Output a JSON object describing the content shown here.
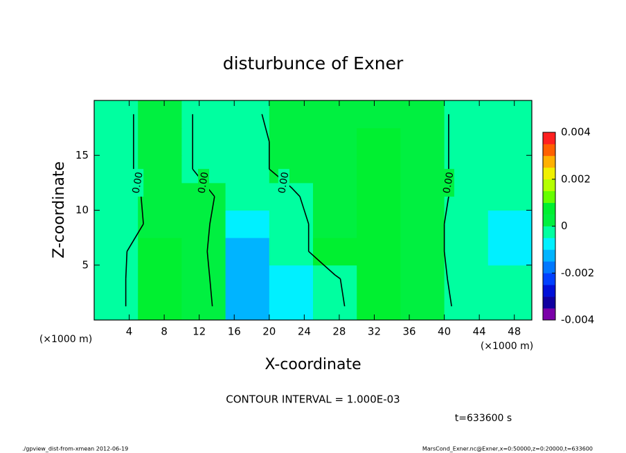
{
  "chart_data": {
    "type": "contour",
    "title": "disturbunce of Exner",
    "xlabel": "X-coordinate",
    "ylabel": "Z-coordinate",
    "x_unit": "(×1000 m)",
    "xlim": [
      0,
      50
    ],
    "xticks": [
      4,
      8,
      12,
      16,
      20,
      24,
      28,
      32,
      36,
      40,
      44,
      48
    ],
    "ylim": [
      0,
      20
    ],
    "yticks": [
      5,
      10,
      15
    ],
    "x": [
      2.5,
      7.5,
      12.5,
      17.5,
      22.5,
      27.5,
      32.5,
      37.5,
      42.5,
      47.5
    ],
    "y": [
      1.25,
      3.75,
      6.25,
      8.75,
      11.25,
      13.75,
      16.25,
      18.75
    ],
    "z": [
      [
        -0.0002,
        0.0007,
        0.0003,
        -0.0012,
        -0.0006,
        -0.0002,
        0.0007,
        0.0004,
        -0.0002,
        -0.0003
      ],
      [
        -0.0002,
        0.0007,
        0.0002,
        -0.0012,
        -0.0007,
        -0.0001,
        0.0007,
        0.0004,
        -0.0003,
        -0.0003
      ],
      [
        -0.0002,
        0.0006,
        0.0001,
        -0.0011,
        -0.0004,
        0.0006,
        0.0007,
        0.0003,
        -0.0003,
        -0.0006
      ],
      [
        -0.0005,
        0.0003,
        0.0001,
        -0.0006,
        -0.0002,
        0.0003,
        0.0007,
        0.0003,
        -0.0003,
        -0.0006
      ],
      [
        -0.0004,
        0.0003,
        0.0001,
        -0.0003,
        -0.0001,
        0.0004,
        0.0007,
        0.0003,
        -0.0002,
        -0.0005
      ],
      [
        -0.0002,
        0.0003,
        -0.0001,
        -0.0002,
        0.0002,
        0.0004,
        0.0006,
        0.0003,
        -0.0002,
        -0.0003
      ],
      [
        -0.0002,
        0.0003,
        -0.0001,
        -0.0002,
        0.0002,
        0.0003,
        0.0006,
        0.0003,
        -0.0002,
        -0.0003
      ],
      [
        -0.0002,
        0.0003,
        -0.0001,
        -0.0001,
        0.0002,
        0.0003,
        0.0003,
        0.0003,
        -0.0002,
        -0.0002
      ]
    ],
    "levels": [
      -0.004,
      -0.0035,
      -0.003,
      -0.0025,
      -0.002,
      -0.0015,
      -0.001,
      -0.0005,
      0,
      0.0005,
      0.001,
      0.0015,
      0.002,
      0.0025,
      0.003,
      0.0035,
      0.004
    ],
    "colors": [
      "#7a00a8",
      "#1000a0",
      "#0010d8",
      "#0040ff",
      "#0078ff",
      "#00b4ff",
      "#00f0ff",
      "#00ffa0",
      "#00f040",
      "#00f030",
      "#66ff00",
      "#b4ff00",
      "#f0f000",
      "#ffb000",
      "#ff6000",
      "#ff2020",
      "#ff9898"
    ],
    "clim": [
      -0.004,
      0.004
    ],
    "cticks": [
      -0.004,
      -0.002,
      0,
      0.002,
      0.004
    ],
    "contour_levels": [
      0
    ],
    "contour_labels": [
      "0.00"
    ],
    "interval_text": "CONTOUR INTERVAL = 1.000E-03",
    "time_text": "t=633600 s",
    "footer_left": "./gpview_dist-from-xmean  2012-06-19",
    "footer_right": "MarsCond_Exner.nc@Exner,x=0:50000,z=0:20000,t=633600"
  }
}
